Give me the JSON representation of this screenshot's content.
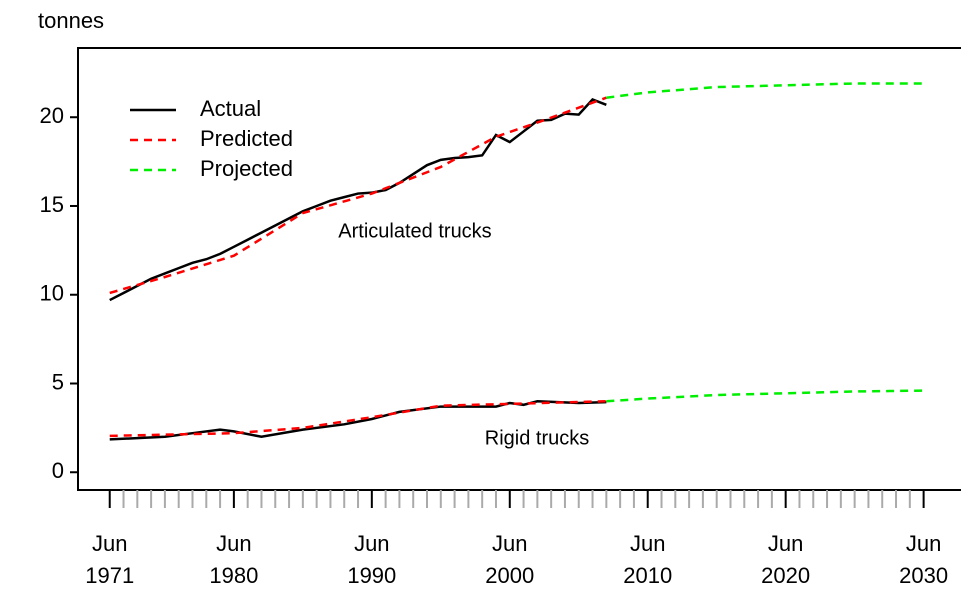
{
  "chart_data": {
    "type": "line",
    "ylabel": "tonnes",
    "xlim": [
      1969.2,
      2033.5
    ],
    "ylim": [
      -1,
      23.9
    ],
    "yticks": [
      0,
      5,
      10,
      15,
      20
    ],
    "xticks": [
      {
        "value": 1971.5,
        "label": "Jun\n1971"
      },
      {
        "value": 1980.5,
        "label": "Jun\n1980"
      },
      {
        "value": 1990.5,
        "label": "Jun\n1990"
      },
      {
        "value": 2000.5,
        "label": "Jun\n2000"
      },
      {
        "value": 2010.5,
        "label": "Jun\n2010"
      },
      {
        "value": 2020.5,
        "label": "Jun\n2020"
      },
      {
        "value": 2030.5,
        "label": "Jun\n2030"
      }
    ],
    "xminorticks": [
      1972.5,
      1973.5,
      1974.5,
      1975.5,
      1976.5,
      1977.5,
      1978.5,
      1979.5,
      1981.5,
      1982.5,
      1983.5,
      1984.5,
      1985.5,
      1986.5,
      1987.5,
      1988.5,
      1989.5,
      1991.5,
      1992.5,
      1993.5,
      1994.5,
      1995.5,
      1996.5,
      1997.5,
      1998.5,
      1999.5,
      2001.5,
      2002.5,
      2003.5,
      2004.5,
      2005.5,
      2006.5,
      2007.5,
      2008.5,
      2009.5,
      2011.5,
      2012.5,
      2013.5,
      2014.5,
      2015.5,
      2016.5,
      2017.5,
      2018.5,
      2019.5,
      2021.5,
      2022.5,
      2023.5,
      2024.5,
      2025.5,
      2026.5,
      2027.5,
      2028.5,
      2029.5
    ],
    "legend_position": "upper left",
    "annotations": [
      "Articulated trucks",
      "Rigid trucks"
    ],
    "series": [
      {
        "name": "Actual",
        "color": "#000000",
        "dashed": false,
        "lines": [
          {
            "x": [
              1971.5,
              1972.5,
              1973.5,
              1974.5,
              1975.5,
              1976.5,
              1977.5,
              1978.5,
              1979.5,
              1980.5,
              1981.5,
              1982.5,
              1983.5,
              1984.5,
              1985.5,
              1986.5,
              1987.5,
              1988.5,
              1989.5,
              1990.5,
              1991.5,
              1992.5,
              1993.5,
              1994.5,
              1995.5,
              1996.5,
              1997.5,
              1998.5,
              1999.5,
              2000.5,
              2001.5,
              2002.5,
              2003.5,
              2004.5,
              2005.5,
              2006.5,
              2007.5
            ],
            "values": [
              9.7,
              10.1,
              10.5,
              10.9,
              11.2,
              11.5,
              11.8,
              12.0,
              12.3,
              12.7,
              13.1,
              13.5,
              13.9,
              14.3,
              14.7,
              15.0,
              15.3,
              15.5,
              15.7,
              15.75,
              15.9,
              16.3,
              16.8,
              17.3,
              17.6,
              17.7,
              17.75,
              17.85,
              19.0,
              18.6,
              19.2,
              19.8,
              19.85,
              20.2,
              20.15,
              21.0,
              20.7
            ]
          },
          {
            "x": [
              1971.5,
              1975.5,
              1977.5,
              1979.5,
              1980.5,
              1982.5,
              1985.5,
              1988.5,
              1990.5,
              1992.5,
              1995.5,
              1999.5,
              2000.5,
              2001.5,
              2002.5,
              2005.5,
              2007.5
            ],
            "values": [
              1.85,
              2.0,
              2.2,
              2.4,
              2.3,
              2.0,
              2.4,
              2.7,
              3.0,
              3.4,
              3.7,
              3.7,
              3.9,
              3.8,
              4.0,
              3.9,
              3.95
            ]
          }
        ]
      },
      {
        "name": "Predicted",
        "color": "#ff0000",
        "dashed": true,
        "lines": [
          {
            "x": [
              1971.5,
              1975.5,
              1980.5,
              1985.5,
              1990.5,
              1995.5,
              1999.5,
              2002.5,
              2007.5
            ],
            "values": [
              10.1,
              11.0,
              12.2,
              14.6,
              15.7,
              17.2,
              18.9,
              19.7,
              21.1
            ]
          },
          {
            "x": [
              1971.5,
              1980.5,
              1985.5,
              1990.5,
              1995.5,
              2000.5,
              2007.5
            ],
            "values": [
              2.05,
              2.2,
              2.5,
              3.1,
              3.75,
              3.85,
              4.0
            ]
          }
        ]
      },
      {
        "name": "Projected",
        "color": "#00ee00",
        "dashed": true,
        "lines": [
          {
            "x": [
              2007.5,
              2010.5,
              2015.5,
              2020.5,
              2025.5,
              2030.5
            ],
            "values": [
              21.1,
              21.4,
              21.7,
              21.8,
              21.9,
              21.9
            ]
          },
          {
            "x": [
              2007.5,
              2010.5,
              2015.5,
              2020.5,
              2025.5,
              2030.5
            ],
            "values": [
              4.0,
              4.15,
              4.35,
              4.45,
              4.55,
              4.6
            ]
          }
        ]
      }
    ]
  }
}
